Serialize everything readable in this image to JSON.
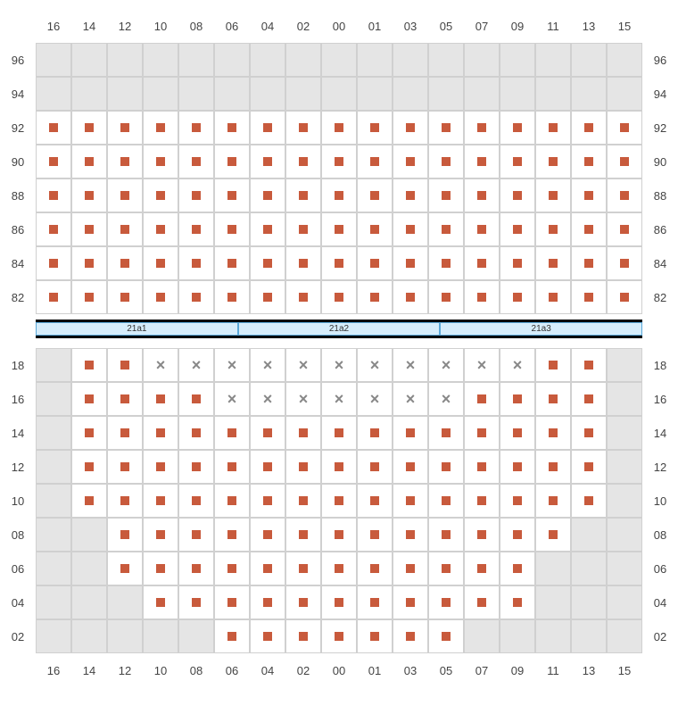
{
  "columns": [
    "16",
    "14",
    "12",
    "10",
    "08",
    "06",
    "04",
    "02",
    "00",
    "01",
    "03",
    "05",
    "07",
    "09",
    "11",
    "13",
    "15"
  ],
  "upper": {
    "rows": [
      "96",
      "94",
      "92",
      "90",
      "88",
      "86",
      "84",
      "82"
    ],
    "cells": {
      "96": [
        "B",
        "B",
        "B",
        "B",
        "B",
        "B",
        "B",
        "B",
        "B",
        "B",
        "B",
        "B",
        "B",
        "B",
        "B",
        "B",
        "B"
      ],
      "94": [
        "B",
        "B",
        "B",
        "B",
        "B",
        "B",
        "B",
        "B",
        "B",
        "B",
        "B",
        "B",
        "B",
        "B",
        "B",
        "B",
        "B"
      ],
      "92": [
        "S",
        "S",
        "S",
        "S",
        "S",
        "S",
        "S",
        "S",
        "S",
        "S",
        "S",
        "S",
        "S",
        "S",
        "S",
        "S",
        "S"
      ],
      "90": [
        "S",
        "S",
        "S",
        "S",
        "S",
        "S",
        "S",
        "S",
        "S",
        "S",
        "S",
        "S",
        "S",
        "S",
        "S",
        "S",
        "S"
      ],
      "88": [
        "S",
        "S",
        "S",
        "S",
        "S",
        "S",
        "S",
        "S",
        "S",
        "S",
        "S",
        "S",
        "S",
        "S",
        "S",
        "S",
        "S"
      ],
      "86": [
        "S",
        "S",
        "S",
        "S",
        "S",
        "S",
        "S",
        "S",
        "S",
        "S",
        "S",
        "S",
        "S",
        "S",
        "S",
        "S",
        "S"
      ],
      "84": [
        "S",
        "S",
        "S",
        "S",
        "S",
        "S",
        "S",
        "S",
        "S",
        "S",
        "S",
        "S",
        "S",
        "S",
        "S",
        "S",
        "S"
      ],
      "82": [
        "S",
        "S",
        "S",
        "S",
        "S",
        "S",
        "S",
        "S",
        "S",
        "S",
        "S",
        "S",
        "S",
        "S",
        "S",
        "S",
        "S"
      ]
    }
  },
  "sections": [
    "21a1",
    "21a2",
    "21a3"
  ],
  "lower": {
    "rows": [
      "18",
      "16",
      "14",
      "12",
      "10",
      "08",
      "06",
      "04",
      "02"
    ],
    "cells": {
      "18": [
        "B",
        "S",
        "S",
        "X",
        "X",
        "X",
        "X",
        "X",
        "X",
        "X",
        "X",
        "X",
        "X",
        "X",
        "S",
        "S",
        "B"
      ],
      "16": [
        "B",
        "S",
        "S",
        "S",
        "S",
        "X",
        "X",
        "X",
        "X",
        "X",
        "X",
        "X",
        "S",
        "S",
        "S",
        "S",
        "B"
      ],
      "14": [
        "B",
        "S",
        "S",
        "S",
        "S",
        "S",
        "S",
        "S",
        "S",
        "S",
        "S",
        "S",
        "S",
        "S",
        "S",
        "S",
        "B"
      ],
      "12": [
        "B",
        "S",
        "S",
        "S",
        "S",
        "S",
        "S",
        "S",
        "S",
        "S",
        "S",
        "S",
        "S",
        "S",
        "S",
        "S",
        "B"
      ],
      "10": [
        "B",
        "S",
        "S",
        "S",
        "S",
        "S",
        "S",
        "S",
        "S",
        "S",
        "S",
        "S",
        "S",
        "S",
        "S",
        "S",
        "B"
      ],
      "08": [
        "B",
        "B",
        "S",
        "S",
        "S",
        "S",
        "S",
        "S",
        "S",
        "S",
        "S",
        "S",
        "S",
        "S",
        "S",
        "B",
        "B"
      ],
      "06": [
        "B",
        "B",
        "S",
        "S",
        "S",
        "S",
        "S",
        "S",
        "S",
        "S",
        "S",
        "S",
        "S",
        "S",
        "B",
        "B",
        "B"
      ],
      "04": [
        "B",
        "B",
        "B",
        "S",
        "S",
        "S",
        "S",
        "S",
        "S",
        "S",
        "S",
        "S",
        "S",
        "S",
        "B",
        "B",
        "B"
      ],
      "02": [
        "B",
        "B",
        "B",
        "B",
        "B",
        "S",
        "S",
        "S",
        "S",
        "S",
        "S",
        "S",
        "B",
        "B",
        "B",
        "B",
        "B"
      ]
    }
  },
  "colors": {
    "seat": "#c85a3c",
    "blank": "#e5e5e5",
    "section_bg": "#d6edfb",
    "section_border": "#5aa8d8",
    "grid": "#d0d0d0",
    "x": "#888888"
  },
  "cell_size": {
    "w": 40,
    "h": 38
  },
  "seat_marker_size": 10
}
